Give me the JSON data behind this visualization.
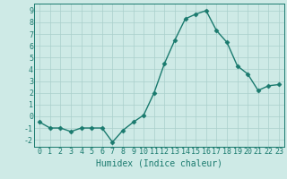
{
  "x": [
    0,
    1,
    2,
    3,
    4,
    5,
    6,
    7,
    8,
    9,
    10,
    11,
    12,
    13,
    14,
    15,
    16,
    17,
    18,
    19,
    20,
    21,
    22,
    23
  ],
  "y": [
    -0.5,
    -1.0,
    -1.0,
    -1.3,
    -1.0,
    -1.0,
    -1.0,
    -2.2,
    -1.2,
    -0.5,
    0.1,
    2.0,
    4.5,
    6.5,
    8.3,
    8.7,
    9.0,
    7.3,
    6.3,
    4.3,
    3.6,
    2.2,
    2.6,
    2.7
  ],
  "ylim": [
    -2.6,
    9.6
  ],
  "xlim": [
    -0.5,
    23.5
  ],
  "yticks": [
    -2,
    -1,
    0,
    1,
    2,
    3,
    4,
    5,
    6,
    7,
    8,
    9
  ],
  "xticks": [
    0,
    1,
    2,
    3,
    4,
    5,
    6,
    7,
    8,
    9,
    10,
    11,
    12,
    13,
    14,
    15,
    16,
    17,
    18,
    19,
    20,
    21,
    22,
    23
  ],
  "xlabel": "Humidex (Indice chaleur)",
  "line_color": "#1a7a6e",
  "marker": "D",
  "marker_size": 2.5,
  "bg_color": "#ceeae6",
  "grid_color": "#aacfcb",
  "xlabel_fontsize": 7,
  "tick_fontsize": 6,
  "tick_color": "#1a7a6e",
  "axis_color": "#1a7a6e",
  "line_width": 1.0
}
